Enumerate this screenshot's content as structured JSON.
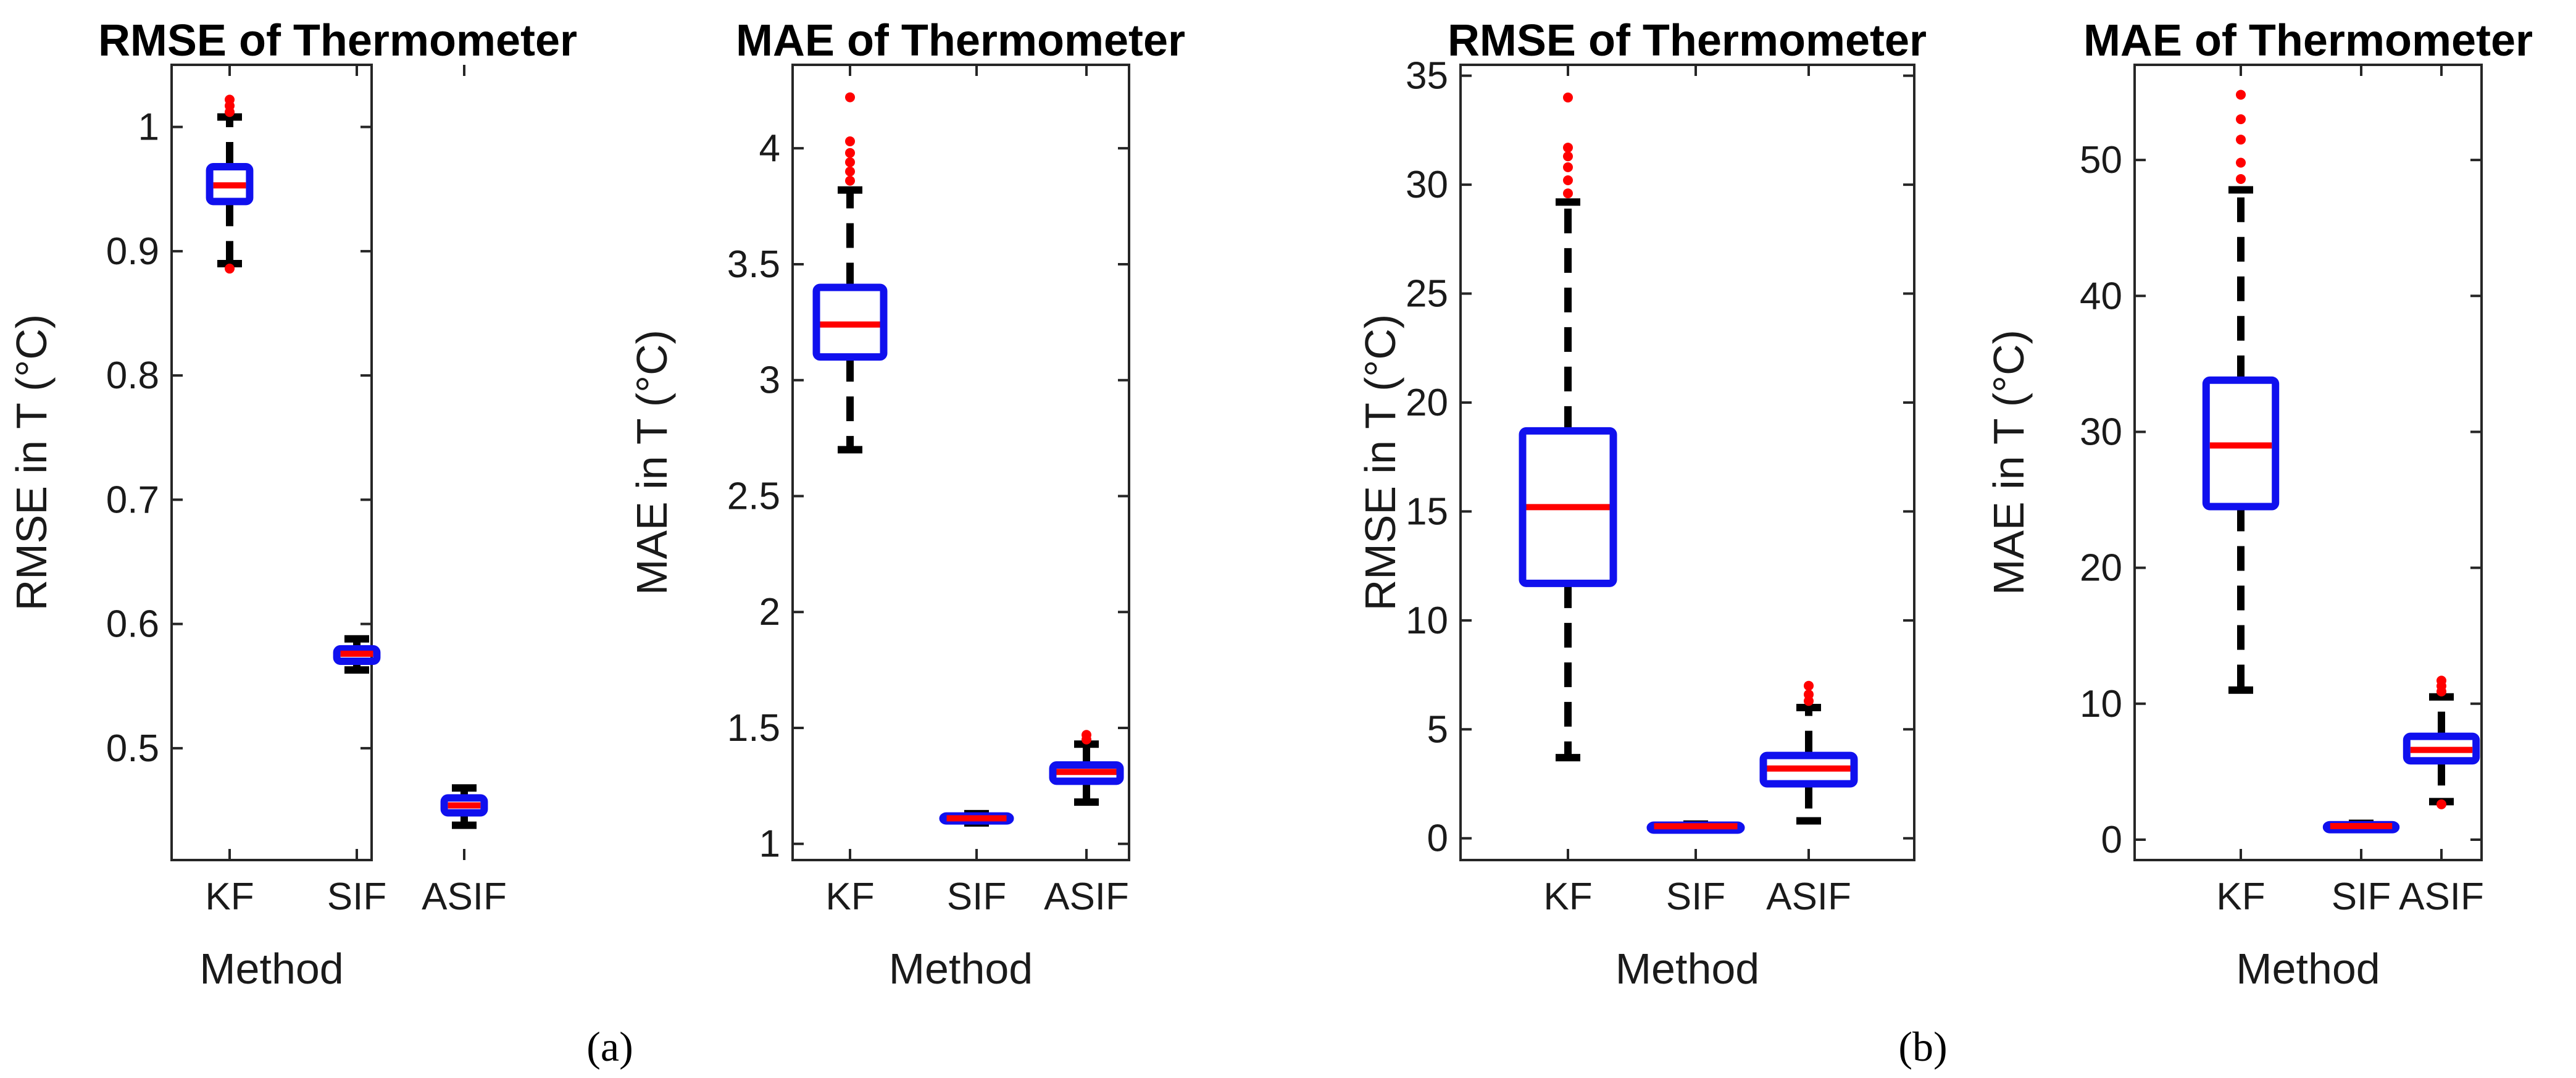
{
  "panel_labels": [
    "(a)",
    "(b)"
  ],
  "colors": {
    "box": "#1010ee",
    "median": "#ff0000",
    "whisker": "#000000",
    "outlier": "#ff0000"
  },
  "chart_data": [
    {
      "type": "box",
      "title": "RMSE of Thermometer",
      "xlabel": "Method",
      "ylabel": "RMSE in T (°C)",
      "categories": [
        "KF",
        "SIF",
        "ASIF"
      ],
      "ylim": [
        0.41,
        1.05
      ],
      "yticks": [
        0.5,
        0.6,
        0.7,
        0.8,
        0.9,
        1
      ],
      "ytick_labels": [
        "0.5",
        "0.6",
        "0.7",
        "0.8",
        "0.9",
        "1"
      ],
      "boxes": [
        {
          "q1": 0.94,
          "median": 0.953,
          "q3": 0.968,
          "whisker_low": 0.89,
          "whisker_high": 1.008,
          "outliers": [
            1.012,
            1.017,
            1.022,
            0.886
          ]
        },
        {
          "q1": 0.57,
          "median": 0.576,
          "q3": 0.58,
          "whisker_low": 0.563,
          "whisker_high": 0.588,
          "outliers": []
        },
        {
          "q1": 0.448,
          "median": 0.454,
          "q3": 0.46,
          "whisker_low": 0.438,
          "whisker_high": 0.468,
          "outliers": []
        }
      ]
    },
    {
      "type": "box",
      "title": "MAE of Thermometer",
      "xlabel": "Method",
      "ylabel": "MAE in T (°C)",
      "categories": [
        "KF",
        "SIF",
        "ASIF"
      ],
      "ylim": [
        0.93,
        4.36
      ],
      "yticks": [
        1,
        1.5,
        2,
        2.5,
        3,
        3.5,
        4
      ],
      "ytick_labels": [
        "1",
        "1.5",
        "2",
        "2.5",
        "3",
        "3.5",
        "4"
      ],
      "boxes": [
        {
          "q1": 3.1,
          "median": 3.24,
          "q3": 3.4,
          "whisker_low": 2.7,
          "whisker_high": 3.82,
          "outliers": [
            3.86,
            3.9,
            3.94,
            3.98,
            4.03,
            4.22
          ]
        },
        {
          "q1": 1.1,
          "median": 1.11,
          "q3": 1.12,
          "whisker_low": 1.09,
          "whisker_high": 1.13,
          "outliers": []
        },
        {
          "q1": 1.27,
          "median": 1.31,
          "q3": 1.34,
          "whisker_low": 1.18,
          "whisker_high": 1.43,
          "outliers": [
            1.45,
            1.47
          ]
        }
      ]
    },
    {
      "type": "box",
      "title": "RMSE of Thermometer",
      "xlabel": "Method",
      "ylabel": "RMSE in T (°C)",
      "categories": [
        "KF",
        "SIF",
        "ASIF"
      ],
      "ylim": [
        -1,
        35.5
      ],
      "yticks": [
        0,
        5,
        10,
        15,
        20,
        25,
        30,
        35
      ],
      "ytick_labels": [
        "0",
        "5",
        "10",
        "15",
        "20",
        "25",
        "30",
        "35"
      ],
      "boxes": [
        {
          "q1": 11.7,
          "median": 15.2,
          "q3": 18.7,
          "whisker_low": 3.7,
          "whisker_high": 29.2,
          "outliers": [
            29.6,
            30.2,
            30.8,
            31.3,
            31.7,
            34
          ]
        },
        {
          "q1": 0.5,
          "median": 0.55,
          "q3": 0.6,
          "whisker_low": 0.45,
          "whisker_high": 0.65,
          "outliers": []
        },
        {
          "q1": 2.5,
          "median": 3.2,
          "q3": 3.8,
          "whisker_low": 0.8,
          "whisker_high": 6,
          "outliers": [
            6.3,
            6.6,
            7
          ]
        }
      ]
    },
    {
      "type": "box",
      "title": "MAE of Thermometer",
      "xlabel": "Method",
      "ylabel": "MAE in T (°C)",
      "categories": [
        "KF",
        "SIF",
        "ASIF"
      ],
      "ylim": [
        -1.5,
        57
      ],
      "yticks": [
        0,
        10,
        20,
        30,
        40,
        50
      ],
      "ytick_labels": [
        "0",
        "10",
        "20",
        "30",
        "40",
        "50"
      ],
      "boxes": [
        {
          "q1": 24.5,
          "median": 29,
          "q3": 33.8,
          "whisker_low": 11,
          "whisker_high": 47.8,
          "outliers": [
            48.6,
            49.8,
            51.5,
            53,
            54.8
          ]
        },
        {
          "q1": 0.9,
          "median": 1,
          "q3": 1.1,
          "whisker_low": 0.8,
          "whisker_high": 1.2,
          "outliers": []
        },
        {
          "q1": 5.8,
          "median": 6.6,
          "q3": 7.6,
          "whisker_low": 2.8,
          "whisker_high": 10.5,
          "outliers": [
            10.9,
            11.3,
            11.7,
            2.6
          ]
        }
      ]
    }
  ]
}
